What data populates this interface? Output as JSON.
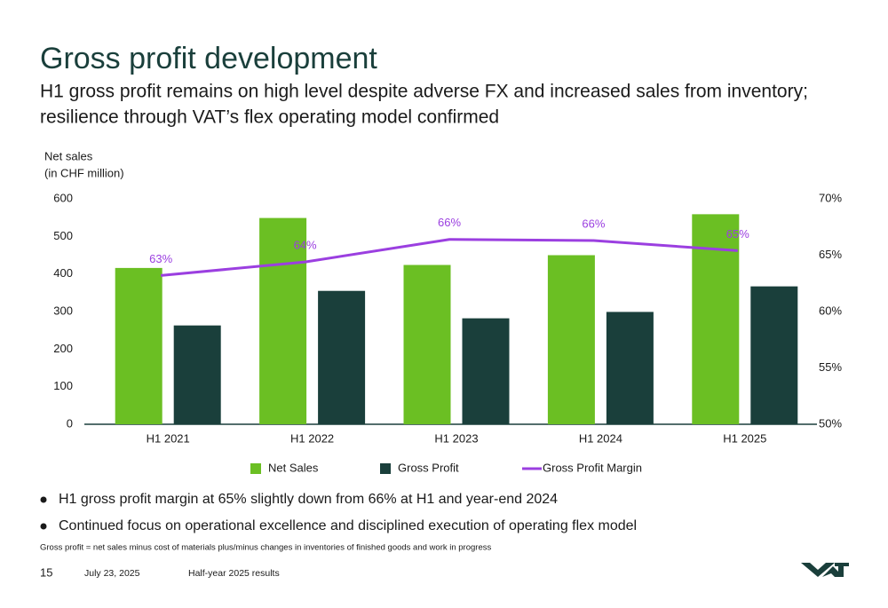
{
  "title": "Gross profit development",
  "subtitle": [
    "H1 gross profit remains on high level despite adverse FX and increased sales from inventory;",
    "resilience through VAT’s flex operating model confirmed"
  ],
  "bullets": [
    "H1 gross profit margin at 65% slightly down from 66% at H1 and year-end 2024",
    "Continued focus on operational excellence and disciplined execution of operating flex model"
  ],
  "footnote": "Gross profit = net sales minus cost of materials plus/minus changes in inventories of finished goods and work in progress",
  "footer": {
    "page": "15",
    "date": "July 23, 2025",
    "event": "Half-year 2025 results"
  },
  "chart_data": {
    "type": "bar",
    "y_label": [
      "Net sales",
      "(in CHF million)"
    ],
    "categories": [
      "H1 2021",
      "H1 2022",
      "H1 2023",
      "H1 2024",
      "H1 2025"
    ],
    "series": [
      {
        "name": "Net Sales",
        "color": "#6bbf23",
        "values": [
          416,
          549,
          424,
          450,
          559
        ]
      },
      {
        "name": "Gross Profit",
        "color": "#1a3f3b",
        "values": [
          263,
          355,
          282,
          299,
          367
        ]
      },
      {
        "name": "Gross Profit Margin",
        "type": "line",
        "axis": "y2",
        "color": "#9b3fe0",
        "values": [
          63.2,
          64.4,
          66.4,
          66.3,
          65.4
        ],
        "value_labels": [
          "63%",
          "64%",
          "66%",
          "66%",
          "65%"
        ]
      }
    ],
    "ylim": [
      0,
      600
    ],
    "yticks": [
      0,
      100,
      200,
      300,
      400,
      500,
      600
    ],
    "y2lim": [
      50,
      70
    ],
    "y2ticks": [
      {
        "value": 50,
        "label": "50%"
      },
      {
        "value": 55,
        "label": "55%"
      },
      {
        "value": 60,
        "label": "60%"
      },
      {
        "value": 65,
        "label": "65%"
      },
      {
        "value": 70,
        "label": "70%"
      }
    ],
    "legend": "bottom",
    "grid": false
  }
}
